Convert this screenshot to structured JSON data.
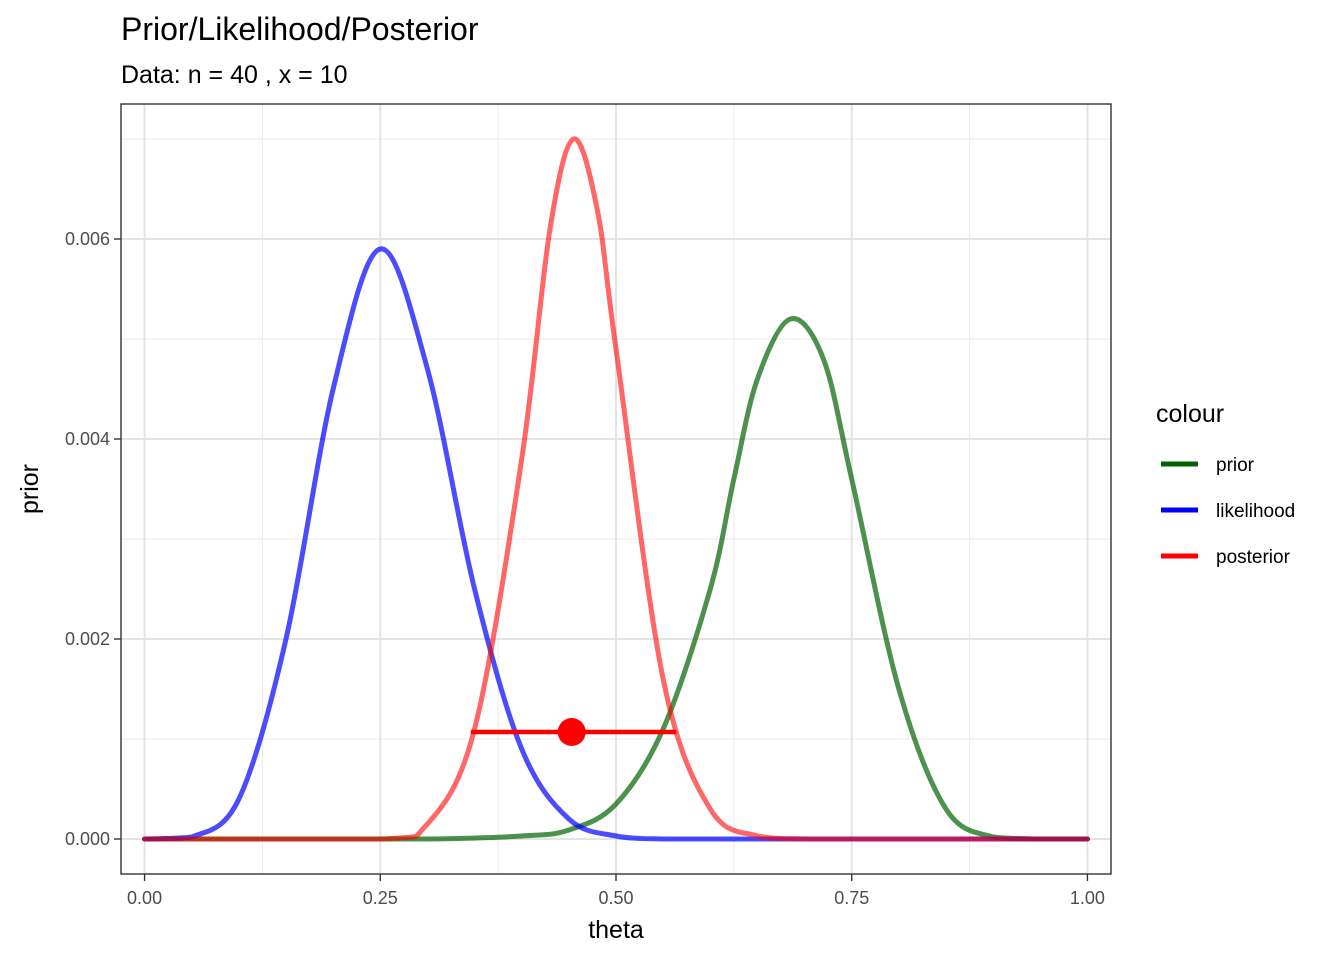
{
  "chart_data": {
    "type": "line",
    "title": "Prior/Likelihood/Posterior",
    "subtitle": "Data: n = 40 , x = 10",
    "xlabel": "theta",
    "ylabel": "prior",
    "xlim": [
      -0.025,
      1.025
    ],
    "ylim": [
      -0.00035,
      0.00735
    ],
    "x_ticks": [
      0.0,
      0.25,
      0.5,
      0.75,
      1.0
    ],
    "x_tick_labels": [
      "0.00",
      "0.25",
      "0.50",
      "0.75",
      "1.00"
    ],
    "y_ticks": [
      0.0,
      0.002,
      0.004,
      0.006
    ],
    "y_tick_labels": [
      "0.000",
      "0.002",
      "0.004",
      "0.006"
    ],
    "grid": true,
    "legend": {
      "title": "colour",
      "position": "right",
      "entries": [
        "prior",
        "likelihood",
        "posterior"
      ]
    },
    "series": [
      {
        "name": "prior",
        "color": "#006400",
        "opacity": 0.7,
        "x": [
          0.0,
          0.2,
          0.3,
          0.4,
          0.45,
          0.5,
          0.55,
          0.6,
          0.625,
          0.65,
          0.685,
          0.72,
          0.75,
          0.8,
          0.85,
          0.9,
          0.95,
          1.0
        ],
        "y": [
          0.0,
          0.0,
          0.0,
          3e-05,
          9e-05,
          0.00035,
          0.0011,
          0.0025,
          0.0036,
          0.0046,
          0.0052,
          0.0048,
          0.0036,
          0.0015,
          0.0003,
          2e-05,
          0.0,
          0.0
        ]
      },
      {
        "name": "likelihood",
        "color": "#0000FF",
        "opacity": 0.7,
        "x": [
          0.0,
          0.05,
          0.1,
          0.15,
          0.2,
          0.25,
          0.3,
          0.35,
          0.4,
          0.45,
          0.5,
          0.55,
          0.6,
          0.7,
          0.8,
          1.0
        ],
        "y": [
          0.0,
          2e-05,
          0.0004,
          0.002,
          0.0045,
          0.0059,
          0.0047,
          0.0025,
          0.0009,
          0.0002,
          3e-05,
          0.0,
          0.0,
          0.0,
          0.0,
          0.0
        ]
      },
      {
        "name": "posterior",
        "color": "#FF0000",
        "opacity": 0.6,
        "x": [
          0.0,
          0.25,
          0.3,
          0.35,
          0.4,
          0.43,
          0.455,
          0.48,
          0.5,
          0.55,
          0.6,
          0.65,
          0.7,
          0.8,
          1.0
        ],
        "y": [
          0.0,
          0.0,
          0.00015,
          0.0011,
          0.0038,
          0.0061,
          0.007,
          0.0063,
          0.0049,
          0.0016,
          0.0003,
          3e-05,
          0.0,
          0.0,
          0.0
        ]
      }
    ],
    "interval": {
      "color": "#FF0000",
      "x_low": 0.346,
      "x_high": 0.564,
      "point_x": 0.453,
      "y": 0.00107
    }
  }
}
